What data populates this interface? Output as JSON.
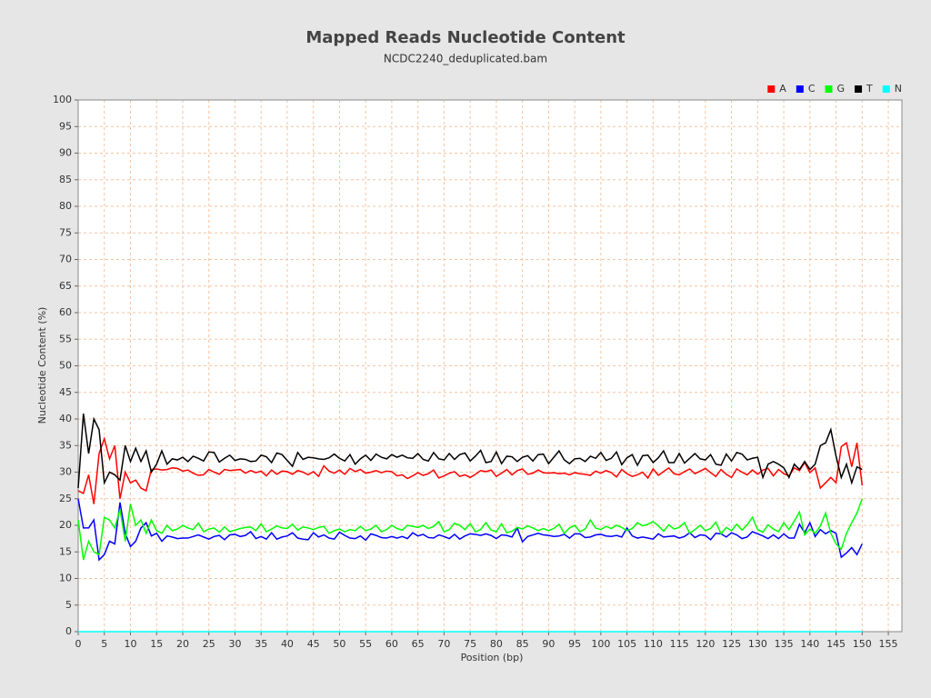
{
  "chart_data": {
    "type": "line",
    "title": "Mapped Reads Nucleotide Content",
    "subtitle": "NCDC2240_deduplicated.bam",
    "x_label": "Position (bp)",
    "y_label": "Nucleotide Content (%)",
    "xlim": [
      0,
      157.6
    ],
    "ylim": [
      0,
      100
    ],
    "xticks": [
      0,
      5,
      10,
      15,
      20,
      25,
      30,
      35,
      40,
      45,
      50,
      55,
      60,
      65,
      70,
      75,
      80,
      85,
      90,
      95,
      100,
      105,
      110,
      115,
      120,
      125,
      130,
      135,
      140,
      145,
      150,
      155
    ],
    "yticks": [
      0,
      5,
      10,
      15,
      20,
      25,
      30,
      35,
      40,
      45,
      50,
      55,
      60,
      65,
      70,
      75,
      80,
      85,
      90,
      95,
      100
    ],
    "grid": true,
    "legend": "top-right",
    "x": [
      0,
      1,
      2,
      3,
      4,
      5,
      6,
      7,
      8,
      9,
      10,
      11,
      12,
      13,
      14,
      15,
      16,
      17,
      18,
      19,
      20,
      21,
      22,
      23,
      24,
      25,
      26,
      27,
      28,
      29,
      30,
      31,
      32,
      33,
      34,
      35,
      36,
      37,
      38,
      39,
      40,
      41,
      42,
      43,
      44,
      45,
      46,
      47,
      48,
      49,
      50,
      51,
      52,
      53,
      54,
      55,
      56,
      57,
      58,
      59,
      60,
      61,
      62,
      63,
      64,
      65,
      66,
      67,
      68,
      69,
      70,
      71,
      72,
      73,
      74,
      75,
      76,
      77,
      78,
      79,
      80,
      81,
      82,
      83,
      84,
      85,
      86,
      87,
      88,
      89,
      90,
      91,
      92,
      93,
      94,
      95,
      96,
      97,
      98,
      99,
      100,
      101,
      102,
      103,
      104,
      105,
      106,
      107,
      108,
      109,
      110,
      111,
      112,
      113,
      114,
      115,
      116,
      117,
      118,
      119,
      120,
      121,
      122,
      123,
      124,
      125,
      126,
      127,
      128,
      129,
      130,
      131,
      132,
      133,
      134,
      135,
      136,
      137,
      138,
      139,
      140,
      141,
      142,
      143,
      144,
      145,
      146,
      147,
      148,
      149,
      150
    ],
    "series": [
      {
        "name": "A",
        "color": "#ff0000",
        "values": [
          26.5,
          26,
          29.5,
          24,
          33.5,
          36.3,
          32.5,
          35,
          25,
          30,
          28,
          28.5,
          27,
          26.5,
          30.5,
          30.6,
          30.4,
          30.5,
          30.8,
          30.7,
          30.2,
          30.4,
          29.8,
          29.4,
          29.5,
          30.5,
          30,
          29.6,
          30.5,
          30.3,
          30.4,
          30.5,
          29.8,
          30.3,
          29.9,
          30.2,
          29.3,
          30.4,
          29.6,
          30.2,
          30.1,
          29.6,
          30.3,
          30,
          29.5,
          30.1,
          29.2,
          31.2,
          30.2,
          29.8,
          30.4,
          29.6,
          30.7,
          30.1,
          30.5,
          29.8,
          30,
          30.3,
          29.9,
          30.2,
          30.1,
          29.3,
          29.5,
          28.8,
          29.3,
          29.9,
          29.4,
          29.7,
          30.4,
          28.9,
          29.3,
          29.8,
          30.1,
          29.2,
          29.5,
          29,
          29.6,
          30.3,
          30.1,
          30.4,
          29.2,
          29.8,
          30.5,
          29.5,
          30.3,
          30.6,
          29.6,
          29.8,
          30.4,
          29.9,
          29.8,
          29.9,
          29.7,
          29.8,
          29.5,
          29.9,
          29.7,
          29.6,
          29.4,
          30.2,
          29.8,
          30.3,
          29.9,
          29.1,
          30.5,
          29.7,
          29.2,
          29.5,
          30,
          28.9,
          30.6,
          29.4,
          30.1,
          30.8,
          29.7,
          29.5,
          30.1,
          30.6,
          29.7,
          30.2,
          30.7,
          29.9,
          29.2,
          30.5,
          29.6,
          29,
          30.6,
          30,
          29.5,
          30.4,
          29.6,
          30.4,
          30.7,
          29.3,
          30.5,
          29.7,
          29.3,
          30.8,
          30.3,
          31.8,
          29.9,
          30.8,
          27,
          28,
          29,
          28,
          34.8,
          35.5,
          31,
          35.5,
          27.5
        ]
      },
      {
        "name": "C",
        "color": "#0000ff",
        "values": [
          25,
          19.5,
          19.5,
          21,
          13.5,
          14.5,
          17,
          16.5,
          24.3,
          18.5,
          16,
          17,
          19.5,
          20.5,
          18,
          18.5,
          17,
          18,
          17.8,
          17.5,
          17.6,
          17.6,
          17.9,
          18.2,
          17.8,
          17.4,
          17.9,
          18.1,
          17.3,
          18.2,
          18.3,
          17.9,
          18.1,
          18.8,
          17.5,
          17.9,
          17.4,
          18.6,
          17.4,
          17.8,
          18,
          18.6,
          17.6,
          17.4,
          17.3,
          18.6,
          17.8,
          18.2,
          17.6,
          17.4,
          18.7,
          18.1,
          17.6,
          17.5,
          18,
          17.2,
          18.4,
          18.1,
          17.7,
          17.6,
          17.9,
          17.6,
          17.9,
          17.5,
          18.6,
          18,
          18.3,
          17.7,
          17.6,
          18.2,
          17.9,
          17.5,
          18.3,
          17.4,
          18,
          18.4,
          18.3,
          18.1,
          18.4,
          18.1,
          17.5,
          18.2,
          18.1,
          17.8,
          19.5,
          16.9,
          17.9,
          18.2,
          18.5,
          18.2,
          18.1,
          17.9,
          18,
          18.3,
          17.6,
          18.4,
          18.4,
          17.7,
          17.8,
          18.2,
          18.3,
          18,
          17.9,
          18.1,
          17.8,
          19.5,
          18,
          17.6,
          17.8,
          17.6,
          17.4,
          18.4,
          17.8,
          17.9,
          18,
          17.6,
          17.9,
          18.6,
          17.7,
          18.2,
          18.1,
          17.3,
          18.5,
          18.4,
          17.8,
          18.6,
          18.2,
          17.5,
          17.8,
          18.8,
          18.4,
          18,
          17.5,
          18.2,
          17.5,
          18.4,
          17.6,
          17.6,
          20.2,
          18.6,
          20.5,
          17.9,
          19.2,
          18.4,
          19,
          18.5,
          14,
          14.8,
          15.8,
          14.5,
          16.5
        ]
      },
      {
        "name": "G",
        "color": "#00ff00",
        "values": [
          21,
          13.5,
          17,
          15,
          14.5,
          21.5,
          21,
          19.5,
          23,
          17,
          24,
          20,
          21,
          18.5,
          21,
          19,
          18.5,
          20,
          19,
          19.3,
          20,
          19.5,
          19.2,
          20.4,
          18.8,
          19.3,
          19.5,
          18.7,
          19.7,
          18.8,
          19.1,
          19.4,
          19.6,
          19.7,
          19,
          20.3,
          18.8,
          19.3,
          19.9,
          19.5,
          19.4,
          20.2,
          19.1,
          19.7,
          19.5,
          19.2,
          19.6,
          19.8,
          18.5,
          19,
          19.3,
          18.8,
          19.2,
          19,
          19.8,
          19,
          19.3,
          20,
          18.8,
          19.2,
          20,
          19.4,
          19.1,
          20,
          19.8,
          19.6,
          20,
          19.4,
          19.8,
          20.7,
          18.8,
          19.2,
          20.4,
          20,
          19.2,
          20.3,
          18.8,
          19.2,
          20.5,
          19.1,
          18.8,
          20.3,
          18.6,
          18.9,
          19.6,
          19.3,
          19.9,
          19.5,
          19,
          19.4,
          19,
          19.4,
          20.2,
          18.5,
          19.5,
          20,
          18.8,
          19.3,
          21,
          19.5,
          19.2,
          19.8,
          19.4,
          20,
          19.6,
          19,
          19.4,
          20.5,
          19.9,
          20.2,
          20.7,
          19.9,
          18.9,
          20.1,
          19.3,
          19.6,
          20.5,
          18.5,
          19.2,
          20,
          19,
          19.4,
          20.6,
          18.4,
          19.6,
          19,
          20.2,
          19.1,
          20.1,
          21.5,
          19.2,
          18.7,
          20.1,
          19.3,
          18.8,
          20.5,
          19.2,
          20.8,
          22.5,
          18.2,
          19.3,
          18.5,
          19.9,
          22.3,
          18.5,
          16.5,
          15.5,
          18.5,
          20.5,
          22.3,
          25
        ]
      },
      {
        "name": "T",
        "color": "#000000",
        "values": [
          27,
          41,
          33.5,
          40,
          38,
          28,
          30,
          29.5,
          28.5,
          35,
          32,
          34.5,
          32,
          34,
          30,
          31.5,
          34,
          31.5,
          32.5,
          32.3,
          32.8,
          32,
          33,
          32.6,
          32.1,
          33.8,
          33.7,
          31.9,
          32.6,
          33.2,
          32.2,
          32.5,
          32.4,
          32,
          32.1,
          33.2,
          32.9,
          31.8,
          33.6,
          33.3,
          32.2,
          31.1,
          33.7,
          32.4,
          32.8,
          32.7,
          32.5,
          32.4,
          32.7,
          33.4,
          32.6,
          32.1,
          33.3,
          31.5,
          32.5,
          33.2,
          32.2,
          33.4,
          32.8,
          32.5,
          33.3,
          32.8,
          33.2,
          32.7,
          32.6,
          33.5,
          32.4,
          32.1,
          33.7,
          32.5,
          32.3,
          33.5,
          32.4,
          33.3,
          33.6,
          32.1,
          33,
          34.1,
          31.8,
          32,
          33.8,
          31.6,
          33,
          32.9,
          32,
          32.8,
          33.1,
          32.1,
          33.3,
          33.4,
          31.6,
          32.8,
          34,
          32.3,
          31.6,
          32.5,
          32.6,
          32,
          33,
          32.6,
          33.7,
          32.2,
          32.6,
          33.8,
          31.4,
          32.7,
          33.3,
          31.3,
          33.1,
          33.2,
          31.8,
          32.7,
          34,
          31.8,
          31.8,
          33.5,
          31.7,
          32.6,
          33.5,
          32.5,
          32.3,
          33.3,
          31.5,
          31.3,
          33.4,
          32.1,
          33.7,
          33.4,
          32.3,
          32.6,
          32.8,
          29,
          31.5,
          32,
          31.5,
          30.8,
          29,
          31.5,
          30.5,
          32,
          30.5,
          31.5,
          35,
          35.5,
          38,
          33,
          29,
          31.5,
          28,
          31,
          30.5
        ]
      },
      {
        "name": "N",
        "color": "#00ffff",
        "values": [
          0,
          0,
          0,
          0,
          0,
          0,
          0,
          0,
          0,
          0,
          0,
          0,
          0,
          0,
          0,
          0,
          0,
          0,
          0,
          0,
          0,
          0,
          0,
          0,
          0,
          0,
          0,
          0,
          0,
          0,
          0,
          0,
          0,
          0,
          0,
          0,
          0,
          0,
          0,
          0,
          0,
          0,
          0,
          0,
          0,
          0,
          0,
          0,
          0,
          0,
          0,
          0,
          0,
          0,
          0,
          0,
          0,
          0,
          0,
          0,
          0,
          0,
          0,
          0,
          0,
          0,
          0,
          0,
          0,
          0,
          0,
          0,
          0,
          0,
          0,
          0,
          0,
          0,
          0,
          0,
          0,
          0,
          0,
          0,
          0,
          0,
          0,
          0,
          0,
          0,
          0,
          0,
          0,
          0,
          0,
          0,
          0,
          0,
          0,
          0,
          0,
          0,
          0,
          0,
          0,
          0,
          0,
          0,
          0,
          0,
          0,
          0,
          0,
          0,
          0,
          0,
          0,
          0,
          0,
          0,
          0,
          0,
          0,
          0,
          0,
          0,
          0,
          0,
          0,
          0,
          0,
          0,
          0,
          0,
          0,
          0,
          0,
          0,
          0,
          0,
          0,
          0,
          0,
          0,
          0,
          0,
          0,
          0,
          0,
          0,
          0
        ]
      }
    ]
  }
}
